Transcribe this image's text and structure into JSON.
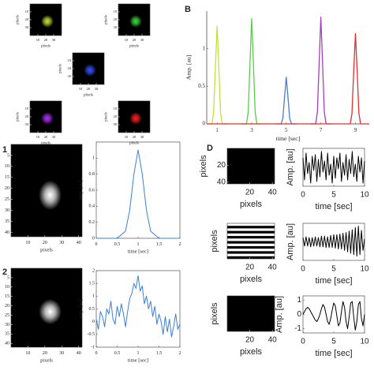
{
  "chart_data": [
    {
      "type": "image",
      "spot_color": "#c8e63a",
      "xlabel": "pixels",
      "ylabel": "pixels",
      "xlim": [
        0,
        40
      ],
      "ylim": [
        0,
        40
      ],
      "xticks": [
        10,
        20,
        30
      ],
      "yticks": [
        10,
        20,
        30
      ]
    },
    {
      "type": "image",
      "spot_color": "#3fdc3f",
      "xlabel": "pixels",
      "ylabel": "pixels",
      "xlim": [
        0,
        40
      ],
      "ylim": [
        0,
        40
      ],
      "xticks": [
        10,
        20,
        30
      ],
      "yticks": [
        10,
        20,
        30
      ]
    },
    {
      "type": "image",
      "spot_color": "#3a50ff",
      "xlabel": "pixels",
      "ylabel": "pixels",
      "xlim": [
        0,
        40
      ],
      "ylim": [
        0,
        40
      ],
      "xticks": [
        10,
        20,
        30
      ],
      "yticks": [
        10,
        20,
        30
      ]
    },
    {
      "type": "image",
      "spot_color": "#b030ff",
      "xlabel": "pixels",
      "ylabel": "pixels",
      "xlim": [
        0,
        40
      ],
      "ylim": [
        0,
        40
      ],
      "xticks": [
        10,
        20,
        30
      ],
      "yticks": [
        10,
        20,
        30
      ]
    },
    {
      "type": "image",
      "spot_color": "#ff2020",
      "xlabel": "pixels",
      "ylabel": "pixels",
      "xlim": [
        0,
        40
      ],
      "ylim": [
        0,
        40
      ],
      "xticks": [
        10,
        20,
        30
      ],
      "yticks": [
        10,
        20,
        30
      ]
    },
    {
      "type": "line",
      "panel_label": "B",
      "xlabel": "time [sec]",
      "ylabel": "Amp. [au]",
      "xlim": [
        0.4,
        9.8
      ],
      "ylim": [
        0,
        1.5
      ],
      "xticks": [
        1,
        3,
        5,
        7,
        9
      ],
      "yticks": [
        0,
        0.5,
        1
      ],
      "series": [
        {
          "color": "#c5e03a",
          "x": [
            0.4,
            0.7,
            0.8,
            0.9,
            1,
            1.1,
            1.2,
            1.3,
            1.6
          ],
          "values": [
            0,
            0,
            0.15,
            0.75,
            1.3,
            0.75,
            0.15,
            0,
            0
          ]
        },
        {
          "color": "#55d043",
          "x": [
            2.4,
            2.7,
            2.8,
            2.9,
            3,
            3.1,
            3.2,
            3.3,
            3.6
          ],
          "values": [
            0,
            0,
            0.16,
            0.8,
            1.4,
            0.8,
            0.16,
            0,
            0
          ]
        },
        {
          "color": "#4a7bd0",
          "x": [
            4.4,
            4.7,
            4.8,
            4.9,
            5,
            5.1,
            5.2,
            5.3,
            5.6
          ],
          "values": [
            0,
            0,
            0.07,
            0.35,
            0.62,
            0.35,
            0.07,
            0,
            0
          ]
        },
        {
          "color": "#a040c0",
          "x": [
            6.4,
            6.7,
            6.8,
            6.9,
            7,
            7.1,
            7.2,
            7.3,
            7.6
          ],
          "values": [
            0,
            0,
            0.16,
            0.8,
            1.42,
            0.8,
            0.16,
            0,
            0
          ]
        },
        {
          "color": "#e03030",
          "x": [
            0.4,
            8.4,
            8.7,
            8.8,
            8.9,
            9,
            9.1,
            9.2,
            9.3,
            9.8
          ],
          "values": [
            0,
            0,
            0,
            0.14,
            0.7,
            1.2,
            0.7,
            0.14,
            0,
            0
          ]
        }
      ]
    },
    {
      "type": "image",
      "panel_label": "1",
      "spot_color": "#ffffff",
      "xlabel": "pixels",
      "xlim": [
        0,
        42
      ],
      "ylim": [
        0,
        42
      ],
      "xticks": [
        10,
        20,
        30,
        40
      ],
      "yticks": [
        5,
        10,
        15,
        20,
        25,
        30,
        35,
        40
      ]
    },
    {
      "type": "line",
      "xlabel": "time [sec]",
      "ylabel": "amp. [au]",
      "xlim": [
        0,
        2
      ],
      "ylim": [
        0,
        1.2
      ],
      "xticks": [
        0,
        0.5,
        1,
        1.5,
        2
      ],
      "yticks": [
        0,
        0.2,
        0.4,
        0.6,
        0.8,
        1
      ],
      "series": [
        {
          "color": "#3a7fd5",
          "x": [
            0,
            0.5,
            0.7,
            0.8,
            0.9,
            1,
            1.1,
            1.2,
            1.3,
            1.5,
            2
          ],
          "values": [
            0,
            0,
            0.09,
            0.35,
            0.8,
            1.1,
            0.8,
            0.35,
            0.09,
            0,
            0
          ]
        }
      ]
    },
    {
      "type": "image",
      "panel_label": "2",
      "spot_color": "#ffffff",
      "xlabel": "pixels",
      "xlim": [
        0,
        42
      ],
      "ylim": [
        0,
        42
      ],
      "xticks": [
        10,
        20,
        30,
        40
      ],
      "yticks": [
        5,
        10,
        15,
        20,
        25,
        30,
        35,
        40
      ]
    },
    {
      "type": "line",
      "xlabel": "time [sec]",
      "ylabel": "amp. [au]",
      "xlim": [
        0,
        2
      ],
      "ylim": [
        -1,
        2
      ],
      "xticks": [
        0,
        0.5,
        1,
        1.5,
        2
      ],
      "yticks": [
        -1,
        -0.5,
        0,
        0.5,
        1,
        1.5,
        2
      ],
      "series": [
        {
          "color": "#3a7fd5",
          "x": [
            0,
            0.05,
            0.1,
            0.15,
            0.2,
            0.25,
            0.3,
            0.35,
            0.4,
            0.45,
            0.5,
            0.55,
            0.6,
            0.65,
            0.7,
            0.75,
            0.8,
            0.85,
            0.9,
            0.95,
            1,
            1.05,
            1.1,
            1.15,
            1.2,
            1.25,
            1.3,
            1.35,
            1.4,
            1.45,
            1.5,
            1.55,
            1.6,
            1.65,
            1.7,
            1.75,
            1.8,
            1.85,
            1.9,
            1.95,
            2
          ],
          "values": [
            0.1,
            -0.3,
            0.4,
            0.2,
            -0.2,
            0.5,
            0.3,
            0.8,
            0.1,
            -0.1,
            0.6,
            0.2,
            0.7,
            0.3,
            -0.2,
            0.4,
            0.9,
            1.1,
            1.5,
            1.3,
            1.8,
            1.2,
            1.4,
            0.7,
            1.0,
            0.5,
            0.8,
            0.2,
            0.6,
            -0.1,
            0.3,
            0.0,
            -0.5,
            0.2,
            -0.4,
            0.1,
            -0.6,
            -0.2,
            0.3,
            -0.3,
            -0.1
          ]
        }
      ]
    },
    {
      "type": "image",
      "panel_label": "D",
      "texture": "noise",
      "xlabel": "pixels",
      "ylabel": "pixels",
      "xlim": [
        0,
        42
      ],
      "ylim": [
        0,
        42
      ],
      "xticks": [
        20,
        40
      ],
      "yticks": [
        20,
        40
      ]
    },
    {
      "type": "line",
      "xlabel": "time [sec]",
      "ylabel": "Amp. [au]",
      "xlim": [
        0,
        10
      ],
      "ylim": [
        -1.2,
        1.2
      ],
      "xticks": [
        0,
        5,
        10
      ],
      "series": [
        {
          "color": "#000000",
          "x": [
            0,
            0.25,
            0.5,
            0.75,
            1,
            1.25,
            1.5,
            1.75,
            2,
            2.25,
            2.5,
            2.75,
            3,
            3.25,
            3.5,
            3.75,
            4,
            4.25,
            4.5,
            4.75,
            5,
            5.25,
            5.5,
            5.75,
            6,
            6.25,
            6.5,
            6.75,
            7,
            7.25,
            7.5,
            7.75,
            8,
            8.25,
            8.5,
            8.75,
            9,
            9.25,
            9.5,
            9.75,
            10
          ],
          "values": [
            0.6,
            -0.8,
            0.9,
            -0.4,
            0.3,
            -1.0,
            0.7,
            -0.2,
            0.8,
            -0.9,
            0.5,
            -0.6,
            1.0,
            -0.3,
            0.4,
            -0.8,
            0.9,
            -0.5,
            0.2,
            -1.0,
            0.7,
            -0.7,
            0.6,
            -0.1,
            0.9,
            -0.9,
            0.3,
            -0.5,
            0.8,
            -0.8,
            0.5,
            -0.4,
            1.0,
            -0.6,
            0.2,
            -0.9,
            0.7,
            -0.3,
            0.6,
            -1.0,
            0.4
          ]
        }
      ]
    },
    {
      "type": "image",
      "texture": "stripes",
      "xlabel": "pixels",
      "ylabel": "pixels",
      "xlim": [
        0,
        42
      ],
      "ylim": [
        0,
        42
      ],
      "xticks": [
        20,
        40
      ]
    },
    {
      "type": "line",
      "xlabel": "time [sec]",
      "ylabel": "Amp. [au]",
      "xlim": [
        0,
        10
      ],
      "ylim": [
        -1.3,
        1.3
      ],
      "xticks": [
        0,
        5,
        10
      ],
      "series": [
        {
          "color": "#000000",
          "x": [
            0,
            0.25,
            0.5,
            0.75,
            1,
            1.25,
            1.5,
            1.75,
            2,
            2.25,
            2.5,
            2.75,
            3,
            3.25,
            3.5,
            3.75,
            4,
            4.25,
            4.5,
            4.75,
            5,
            5.25,
            5.5,
            5.75,
            6,
            6.25,
            6.5,
            6.75,
            7,
            7.25,
            7.5,
            7.75,
            8,
            8.25,
            8.5,
            8.75,
            9,
            9.25,
            9.5,
            9.75,
            10
          ],
          "values": [
            0.3,
            -0.3,
            0.35,
            -0.3,
            0.3,
            -0.35,
            0.3,
            -0.3,
            0.35,
            -0.3,
            0.3,
            -0.35,
            0.4,
            -0.35,
            0.4,
            -0.4,
            0.35,
            -0.4,
            0.45,
            -0.4,
            0.5,
            -0.45,
            0.5,
            -0.5,
            0.55,
            -0.5,
            0.6,
            -0.6,
            0.65,
            -0.7,
            0.75,
            -0.8,
            0.85,
            -0.9,
            1.0,
            -1.0,
            1.1,
            -0.9,
            0.8,
            -0.6,
            0.2
          ]
        }
      ]
    },
    {
      "type": "image",
      "texture": "noise",
      "xlabel": "pixels",
      "ylabel": "pixels",
      "xlim": [
        0,
        42
      ],
      "ylim": [
        0,
        42
      ],
      "xticks": [
        20,
        40
      ]
    },
    {
      "type": "line",
      "xlabel": "time [sec]",
      "ylabel": "Amp. [au]",
      "xlim": [
        0,
        10
      ],
      "ylim": [
        -1.3,
        1.3
      ],
      "xticks": [
        0,
        5,
        10
      ],
      "yticks": [
        -1,
        0,
        1
      ],
      "series": [
        {
          "color": "#000000",
          "x": [
            0,
            0.25,
            0.5,
            0.75,
            1,
            1.25,
            1.5,
            1.75,
            2,
            2.25,
            2.5,
            2.75,
            3,
            3.25,
            3.5,
            3.75,
            4,
            4.25,
            4.5,
            4.75,
            5,
            5.25,
            5.5,
            5.75,
            6,
            6.25,
            6.5,
            6.75,
            7,
            7.25,
            7.5,
            7.75,
            8,
            8.25,
            8.5,
            8.75,
            9,
            9.25,
            9.5,
            9.75,
            10
          ],
          "values": [
            0,
            0.2,
            0.4,
            0.5,
            0.4,
            0.2,
            0,
            -0.2,
            -0.4,
            -0.5,
            -0.3,
            0,
            0.4,
            0.7,
            0.5,
            0,
            -0.5,
            -0.7,
            -0.3,
            0.3,
            0.8,
            0.6,
            -0.1,
            -0.8,
            -0.6,
            0.2,
            0.9,
            0.5,
            -0.5,
            -1.0,
            -0.2,
            0.8,
            0.9,
            -0.2,
            -1.1,
            -0.5,
            0.7,
            0.9,
            -0.3,
            -0.8,
            0
          ]
        }
      ]
    }
  ]
}
